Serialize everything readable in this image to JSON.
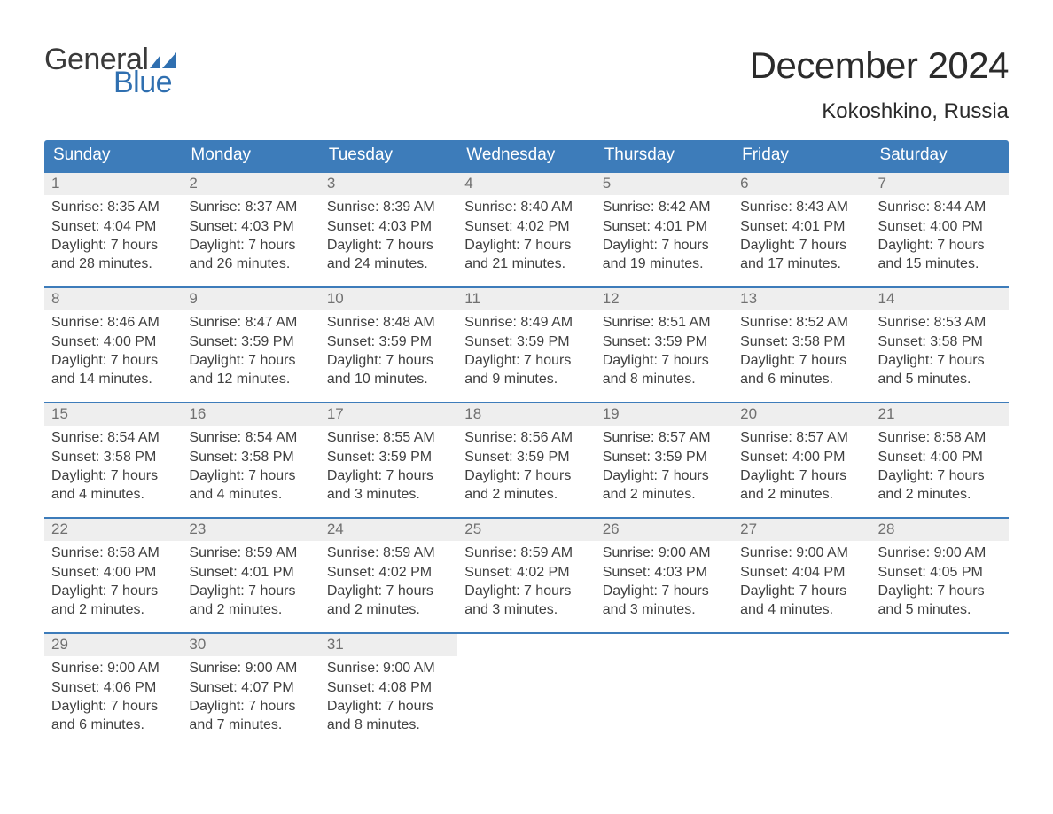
{
  "brand": {
    "word1": "General",
    "word2": "Blue",
    "accent_color": "#2f6fb0"
  },
  "title": "December 2024",
  "location": "Kokoshkino, Russia",
  "colors": {
    "header_bg": "#3d7cba",
    "header_text": "#ffffff",
    "week_border": "#3d7cba",
    "daynum_bg": "#eeeeee",
    "daynum_text": "#707070",
    "body_text": "#404040",
    "page_bg": "#ffffff"
  },
  "typography": {
    "title_fontsize": 42,
    "location_fontsize": 24,
    "header_fontsize": 19,
    "cell_fontsize": 16,
    "logo_fontsize": 34
  },
  "day_headers": [
    "Sunday",
    "Monday",
    "Tuesday",
    "Wednesday",
    "Thursday",
    "Friday",
    "Saturday"
  ],
  "weeks": [
    [
      {
        "n": "1",
        "sunrise": "8:35 AM",
        "sunset": "4:04 PM",
        "daylight": "7 hours and 28 minutes."
      },
      {
        "n": "2",
        "sunrise": "8:37 AM",
        "sunset": "4:03 PM",
        "daylight": "7 hours and 26 minutes."
      },
      {
        "n": "3",
        "sunrise": "8:39 AM",
        "sunset": "4:03 PM",
        "daylight": "7 hours and 24 minutes."
      },
      {
        "n": "4",
        "sunrise": "8:40 AM",
        "sunset": "4:02 PM",
        "daylight": "7 hours and 21 minutes."
      },
      {
        "n": "5",
        "sunrise": "8:42 AM",
        "sunset": "4:01 PM",
        "daylight": "7 hours and 19 minutes."
      },
      {
        "n": "6",
        "sunrise": "8:43 AM",
        "sunset": "4:01 PM",
        "daylight": "7 hours and 17 minutes."
      },
      {
        "n": "7",
        "sunrise": "8:44 AM",
        "sunset": "4:00 PM",
        "daylight": "7 hours and 15 minutes."
      }
    ],
    [
      {
        "n": "8",
        "sunrise": "8:46 AM",
        "sunset": "4:00 PM",
        "daylight": "7 hours and 14 minutes."
      },
      {
        "n": "9",
        "sunrise": "8:47 AM",
        "sunset": "3:59 PM",
        "daylight": "7 hours and 12 minutes."
      },
      {
        "n": "10",
        "sunrise": "8:48 AM",
        "sunset": "3:59 PM",
        "daylight": "7 hours and 10 minutes."
      },
      {
        "n": "11",
        "sunrise": "8:49 AM",
        "sunset": "3:59 PM",
        "daylight": "7 hours and 9 minutes."
      },
      {
        "n": "12",
        "sunrise": "8:51 AM",
        "sunset": "3:59 PM",
        "daylight": "7 hours and 8 minutes."
      },
      {
        "n": "13",
        "sunrise": "8:52 AM",
        "sunset": "3:58 PM",
        "daylight": "7 hours and 6 minutes."
      },
      {
        "n": "14",
        "sunrise": "8:53 AM",
        "sunset": "3:58 PM",
        "daylight": "7 hours and 5 minutes."
      }
    ],
    [
      {
        "n": "15",
        "sunrise": "8:54 AM",
        "sunset": "3:58 PM",
        "daylight": "7 hours and 4 minutes."
      },
      {
        "n": "16",
        "sunrise": "8:54 AM",
        "sunset": "3:58 PM",
        "daylight": "7 hours and 4 minutes."
      },
      {
        "n": "17",
        "sunrise": "8:55 AM",
        "sunset": "3:59 PM",
        "daylight": "7 hours and 3 minutes."
      },
      {
        "n": "18",
        "sunrise": "8:56 AM",
        "sunset": "3:59 PM",
        "daylight": "7 hours and 2 minutes."
      },
      {
        "n": "19",
        "sunrise": "8:57 AM",
        "sunset": "3:59 PM",
        "daylight": "7 hours and 2 minutes."
      },
      {
        "n": "20",
        "sunrise": "8:57 AM",
        "sunset": "4:00 PM",
        "daylight": "7 hours and 2 minutes."
      },
      {
        "n": "21",
        "sunrise": "8:58 AM",
        "sunset": "4:00 PM",
        "daylight": "7 hours and 2 minutes."
      }
    ],
    [
      {
        "n": "22",
        "sunrise": "8:58 AM",
        "sunset": "4:00 PM",
        "daylight": "7 hours and 2 minutes."
      },
      {
        "n": "23",
        "sunrise": "8:59 AM",
        "sunset": "4:01 PM",
        "daylight": "7 hours and 2 minutes."
      },
      {
        "n": "24",
        "sunrise": "8:59 AM",
        "sunset": "4:02 PM",
        "daylight": "7 hours and 2 minutes."
      },
      {
        "n": "25",
        "sunrise": "8:59 AM",
        "sunset": "4:02 PM",
        "daylight": "7 hours and 3 minutes."
      },
      {
        "n": "26",
        "sunrise": "9:00 AM",
        "sunset": "4:03 PM",
        "daylight": "7 hours and 3 minutes."
      },
      {
        "n": "27",
        "sunrise": "9:00 AM",
        "sunset": "4:04 PM",
        "daylight": "7 hours and 4 minutes."
      },
      {
        "n": "28",
        "sunrise": "9:00 AM",
        "sunset": "4:05 PM",
        "daylight": "7 hours and 5 minutes."
      }
    ],
    [
      {
        "n": "29",
        "sunrise": "9:00 AM",
        "sunset": "4:06 PM",
        "daylight": "7 hours and 6 minutes."
      },
      {
        "n": "30",
        "sunrise": "9:00 AM",
        "sunset": "4:07 PM",
        "daylight": "7 hours and 7 minutes."
      },
      {
        "n": "31",
        "sunrise": "9:00 AM",
        "sunset": "4:08 PM",
        "daylight": "7 hours and 8 minutes."
      },
      null,
      null,
      null,
      null
    ]
  ],
  "labels": {
    "sunrise": "Sunrise:",
    "sunset": "Sunset:",
    "daylight": "Daylight:"
  }
}
